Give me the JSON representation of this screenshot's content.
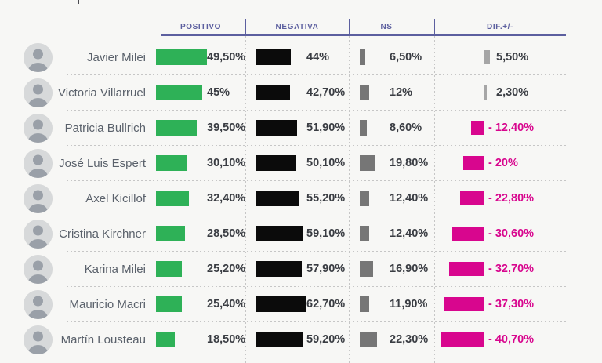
{
  "columns": [
    {
      "label": "POSITIVO"
    },
    {
      "label": "NEGATIVA"
    },
    {
      "label": "NS"
    },
    {
      "label": "DIF.+/-"
    }
  ],
  "colors": {
    "background": "#f7f7f5",
    "header_accent": "#5c5f9f",
    "positivo_bar": "#2eb157",
    "negativa_bar": "#0b0b0b",
    "ns_bar": "#767676",
    "dif_positive_bar": "#a6a6a6",
    "dif_negative": "#d8068e",
    "name_text": "#5a616b",
    "value_text": "#3a3d43"
  },
  "rows": [
    {
      "name": "Javier Milei",
      "positivo": {
        "value": 49.5,
        "label": "49,50%"
      },
      "negativa": {
        "value": 44,
        "label": "44%"
      },
      "ns": {
        "value": 6.5,
        "label": "6,50%"
      },
      "dif": {
        "value": 5.5,
        "label": "5,50%"
      }
    },
    {
      "name": "Victoria Villarruel",
      "positivo": {
        "value": 45,
        "label": "45%"
      },
      "negativa": {
        "value": 42.7,
        "label": "42,70%"
      },
      "ns": {
        "value": 12,
        "label": "12%"
      },
      "dif": {
        "value": 2.3,
        "label": "2,30%"
      }
    },
    {
      "name": "Patricia Bullrich",
      "positivo": {
        "value": 39.5,
        "label": "39,50%"
      },
      "negativa": {
        "value": 51.9,
        "label": "51,90%"
      },
      "ns": {
        "value": 8.6,
        "label": "8,60%"
      },
      "dif": {
        "value": -12.4,
        "label": "- 12,40%"
      }
    },
    {
      "name": "José Luis Espert",
      "positivo": {
        "value": 30.1,
        "label": "30,10%"
      },
      "negativa": {
        "value": 50.1,
        "label": "50,10%"
      },
      "ns": {
        "value": 19.8,
        "label": "19,80%"
      },
      "dif": {
        "value": -20,
        "label": "- 20%"
      }
    },
    {
      "name": "Axel Kicillof",
      "positivo": {
        "value": 32.4,
        "label": "32,40%"
      },
      "negativa": {
        "value": 55.2,
        "label": "55,20%"
      },
      "ns": {
        "value": 12.4,
        "label": "12,40%"
      },
      "dif": {
        "value": -22.8,
        "label": "- 22,80%"
      }
    },
    {
      "name": "Cristina Kirchner",
      "positivo": {
        "value": 28.5,
        "label": "28,50%"
      },
      "negativa": {
        "value": 59.1,
        "label": "59,10%"
      },
      "ns": {
        "value": 12.4,
        "label": "12,40%"
      },
      "dif": {
        "value": -30.6,
        "label": "- 30,60%"
      }
    },
    {
      "name": "Karina Milei",
      "positivo": {
        "value": 25.2,
        "label": "25,20%"
      },
      "negativa": {
        "value": 57.9,
        "label": "57,90%"
      },
      "ns": {
        "value": 16.9,
        "label": "16,90%"
      },
      "dif": {
        "value": -32.7,
        "label": "- 32,70%"
      }
    },
    {
      "name": "Mauricio Macri",
      "positivo": {
        "value": 25.4,
        "label": "25,40%"
      },
      "negativa": {
        "value": 62.7,
        "label": "62,70%"
      },
      "ns": {
        "value": 11.9,
        "label": "11,90%"
      },
      "dif": {
        "value": -37.3,
        "label": "- 37,30%"
      }
    },
    {
      "name": "Martín Lousteau",
      "positivo": {
        "value": 18.5,
        "label": "18,50%"
      },
      "negativa": {
        "value": 59.2,
        "label": "59,20%"
      },
      "ns": {
        "value": 22.3,
        "label": "22,30%"
      },
      "dif": {
        "value": -40.7,
        "label": "- 40,70%"
      }
    }
  ],
  "chart_data": {
    "type": "bar",
    "orientation": "horizontal",
    "title": "",
    "categories": [
      "Javier Milei",
      "Victoria Villarruel",
      "Patricia Bullrich",
      "José Luis Espert",
      "Axel Kicillof",
      "Cristina Kirchner",
      "Karina Milei",
      "Mauricio Macri",
      "Martín Lousteau"
    ],
    "series": [
      {
        "name": "POSITIVO",
        "values": [
          49.5,
          45,
          39.5,
          30.1,
          32.4,
          28.5,
          25.2,
          25.4,
          18.5
        ],
        "color": "#2eb157"
      },
      {
        "name": "NEGATIVA",
        "values": [
          44,
          42.7,
          51.9,
          50.1,
          55.2,
          59.1,
          57.9,
          62.7,
          59.2
        ],
        "color": "#0b0b0b"
      },
      {
        "name": "NS",
        "values": [
          6.5,
          12,
          8.6,
          19.8,
          12.4,
          12.4,
          16.9,
          11.9,
          22.3
        ],
        "color": "#767676"
      },
      {
        "name": "DIF.+/-",
        "values": [
          5.5,
          2.3,
          -12.4,
          -20,
          -22.8,
          -30.6,
          -32.7,
          -37.3,
          -40.7
        ],
        "color_positive": "#a6a6a6",
        "color_negative": "#d8068e"
      }
    ],
    "value_format": "percent, Spanish decimal comma",
    "legend_position": "top-column-headers",
    "grid": "dashed row and column separators"
  }
}
